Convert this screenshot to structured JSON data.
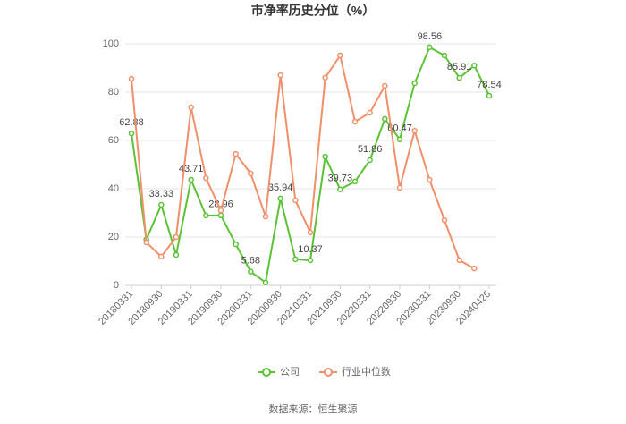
{
  "chart_data": {
    "type": "line",
    "title": "市净率历史分位（%）",
    "source": "数据来源：恒生聚源",
    "categories": [
      "20180331",
      null,
      "20180930",
      null,
      "20190331",
      null,
      "20190930",
      null,
      "20200331",
      null,
      "20200930",
      null,
      "20210331",
      null,
      "20210930",
      null,
      "20220331",
      null,
      "20220930",
      null,
      "20230331",
      null,
      "20230930",
      null,
      "20240425"
    ],
    "series": [
      {
        "name": "公司",
        "color": "#5bc236",
        "values": [
          62.88,
          19,
          33.33,
          12.6,
          43.71,
          28.9,
          28.96,
          17,
          5.68,
          1.2,
          35.94,
          10.8,
          10.37,
          53.3,
          39.73,
          43,
          51.86,
          68.9,
          60.47,
          83.7,
          98.56,
          95.2,
          85.91,
          91,
          78.54
        ],
        "value_labels": [
          "62.88",
          null,
          "33.33",
          null,
          "43.71",
          null,
          "28.96",
          null,
          "5.68",
          null,
          "35.94",
          null,
          "10.37",
          null,
          "39.73",
          null,
          "51.86",
          null,
          "60.47",
          null,
          "98.56",
          null,
          "85.91",
          null,
          "78.54"
        ]
      },
      {
        "name": "行业中位数",
        "color": "#f0906a",
        "values": [
          85.5,
          17.8,
          11.9,
          20,
          73.7,
          44.4,
          31,
          54.4,
          46.3,
          28.5,
          87,
          35.2,
          21.9,
          86,
          95.2,
          67.8,
          71.5,
          82.6,
          40.4,
          64,
          43.7,
          27,
          10.4,
          7,
          null
        ]
      }
    ],
    "ylim": [
      0,
      100
    ],
    "yticks": [
      0,
      20,
      40,
      60,
      80,
      100
    ],
    "grid": true
  }
}
